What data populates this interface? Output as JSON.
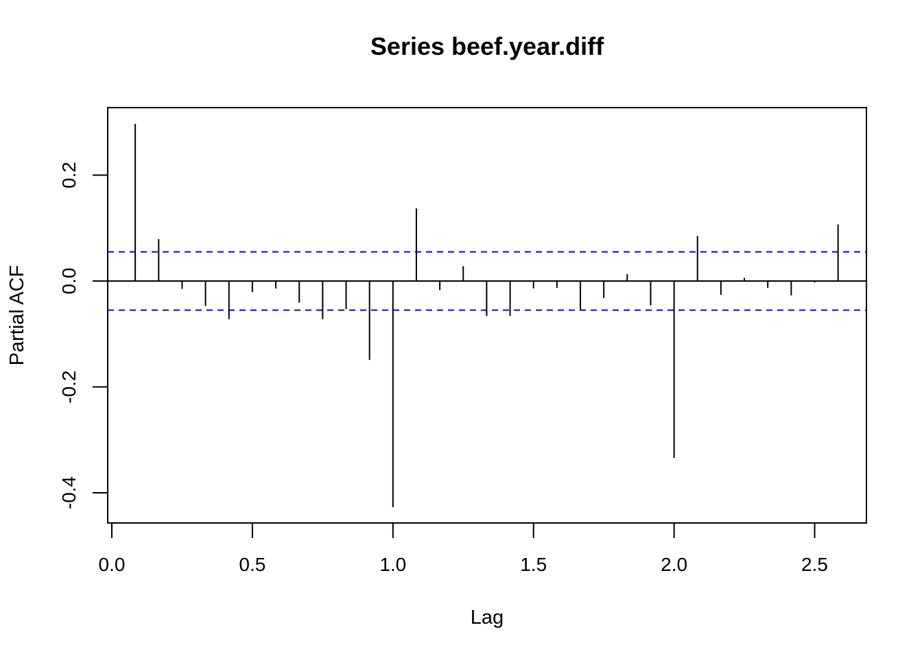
{
  "chart_data": {
    "type": "bar",
    "title": "Series  beef.year.diff",
    "xlabel": "Lag",
    "ylabel": "Partial ACF",
    "xlim": [
      0,
      2.667
    ],
    "ylim": [
      -0.455,
      0.325
    ],
    "xticks": [
      "0.0",
      "0.5",
      "1.0",
      "1.5",
      "2.0",
      "2.5"
    ],
    "yticks": [
      "-0.4",
      "-0.2",
      "0.0",
      "0.2"
    ],
    "confidence_bound": 0.055,
    "x": [
      0.0833,
      0.1667,
      0.25,
      0.3333,
      0.4167,
      0.5,
      0.5833,
      0.6667,
      0.75,
      0.8333,
      0.9167,
      1.0,
      1.0833,
      1.1667,
      1.25,
      1.3333,
      1.4167,
      1.5,
      1.5833,
      1.6667,
      1.75,
      1.8333,
      1.9167,
      2.0,
      2.0833,
      2.1667,
      2.25,
      2.3333,
      2.4167,
      2.5,
      2.5833
    ],
    "values": [
      0.297,
      0.079,
      -0.015,
      -0.047,
      -0.072,
      -0.021,
      -0.014,
      -0.041,
      -0.072,
      -0.053,
      -0.149,
      -0.427,
      0.137,
      -0.017,
      0.028,
      -0.066,
      -0.066,
      -0.014,
      -0.013,
      -0.055,
      -0.032,
      0.013,
      -0.046,
      -0.334,
      0.085,
      -0.026,
      0.006,
      -0.013,
      -0.027,
      -0.003,
      0.107
    ],
    "colors": {
      "bars": "#000000",
      "bounds": "#0000ff",
      "axes": "#000000"
    }
  }
}
